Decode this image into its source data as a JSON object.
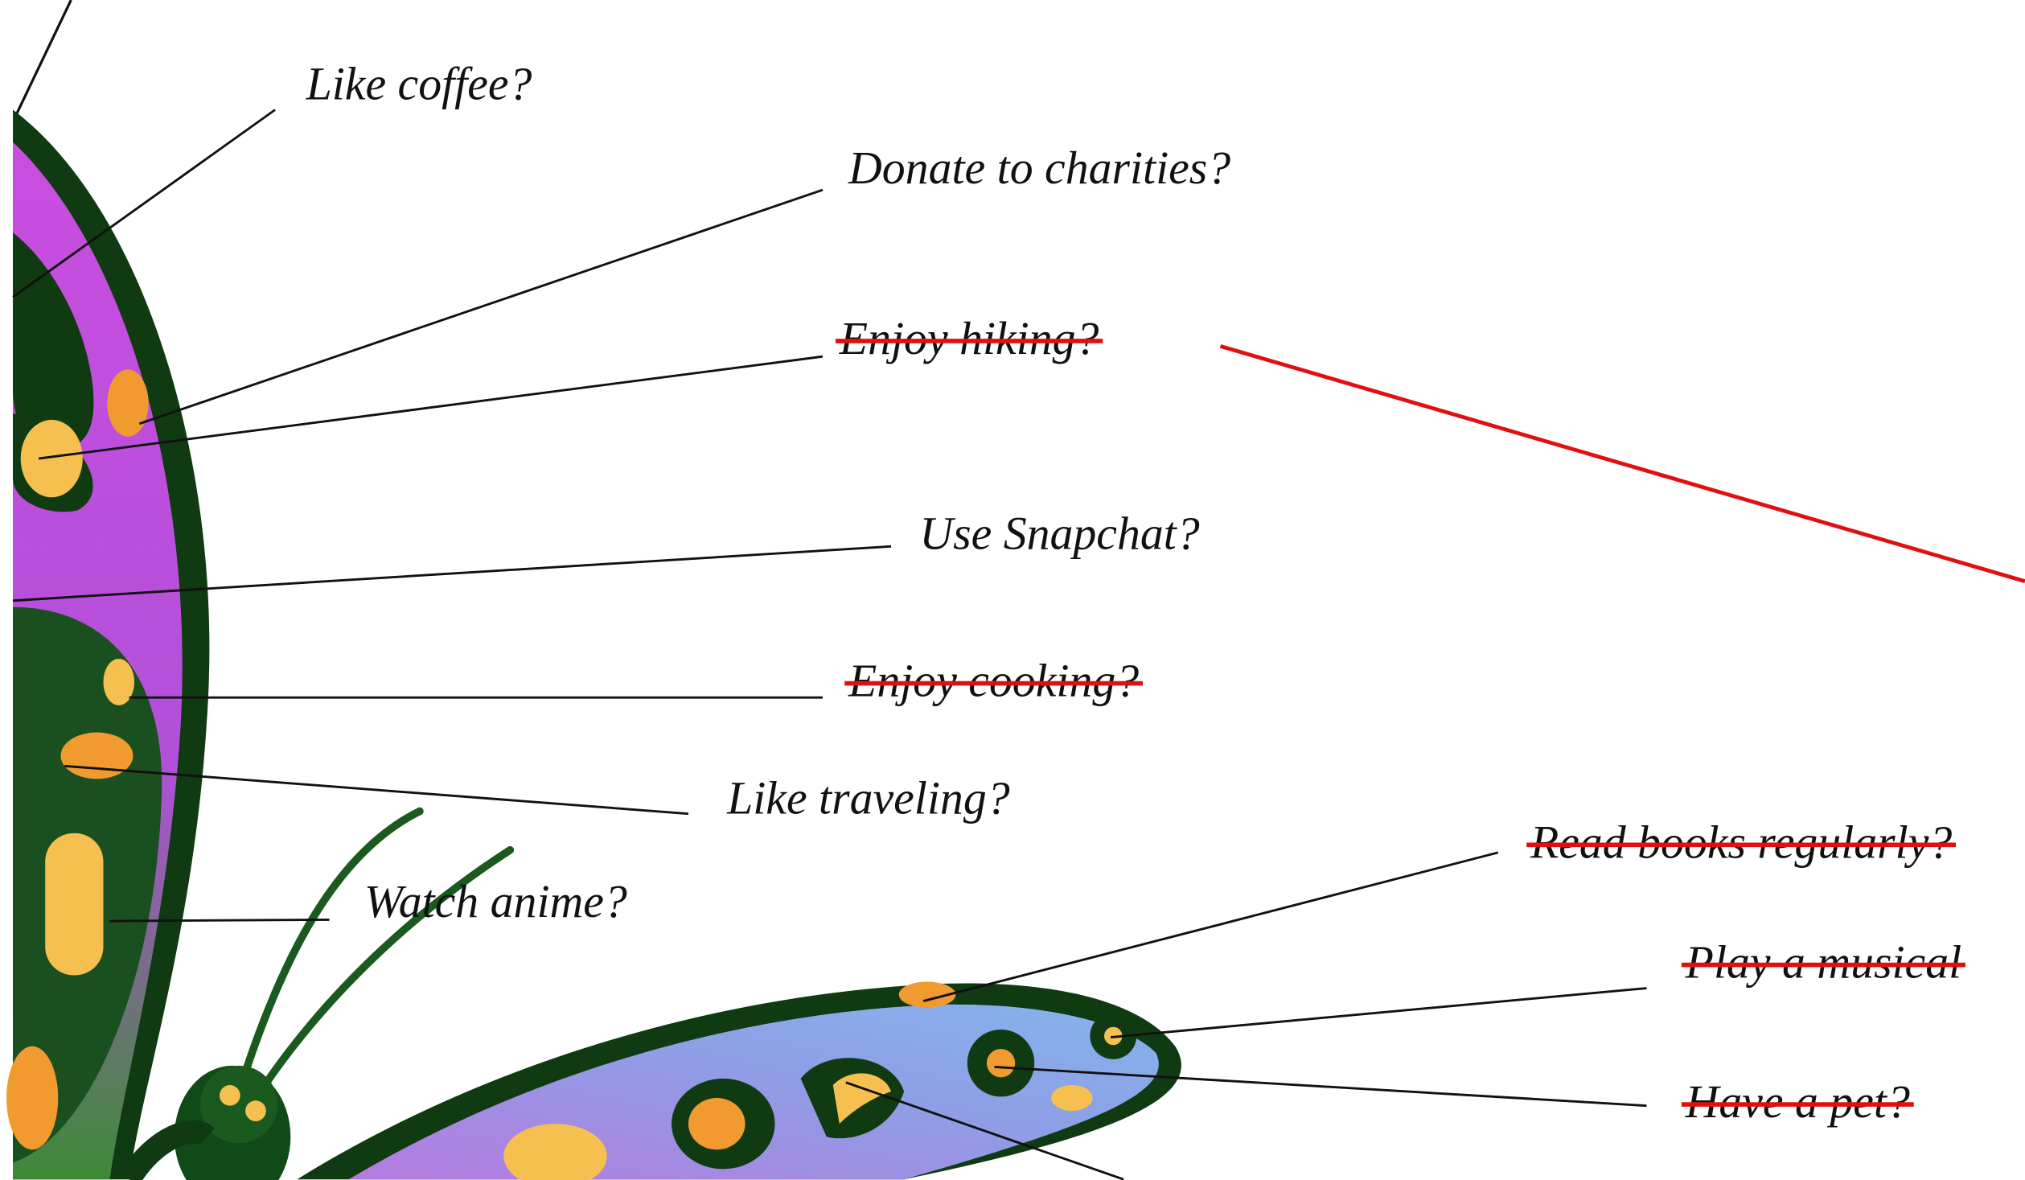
{
  "labels": [
    {
      "text": "Like coffee?",
      "crossed": false
    },
    {
      "text": "Donate to charities?",
      "crossed": false
    },
    {
      "text": "Enjoy hiking?",
      "crossed": true
    },
    {
      "text": "Use Snapchat?",
      "crossed": false
    },
    {
      "text": "Enjoy cooking?",
      "crossed": true
    },
    {
      "text": "Like traveling?",
      "crossed": false
    },
    {
      "text": "Watch anime?",
      "crossed": false
    },
    {
      "text": "Read books regularly?",
      "crossed": true
    },
    {
      "text": "Play a musical",
      "crossed": true
    },
    {
      "text": "Have a pet?",
      "crossed": true
    }
  ]
}
